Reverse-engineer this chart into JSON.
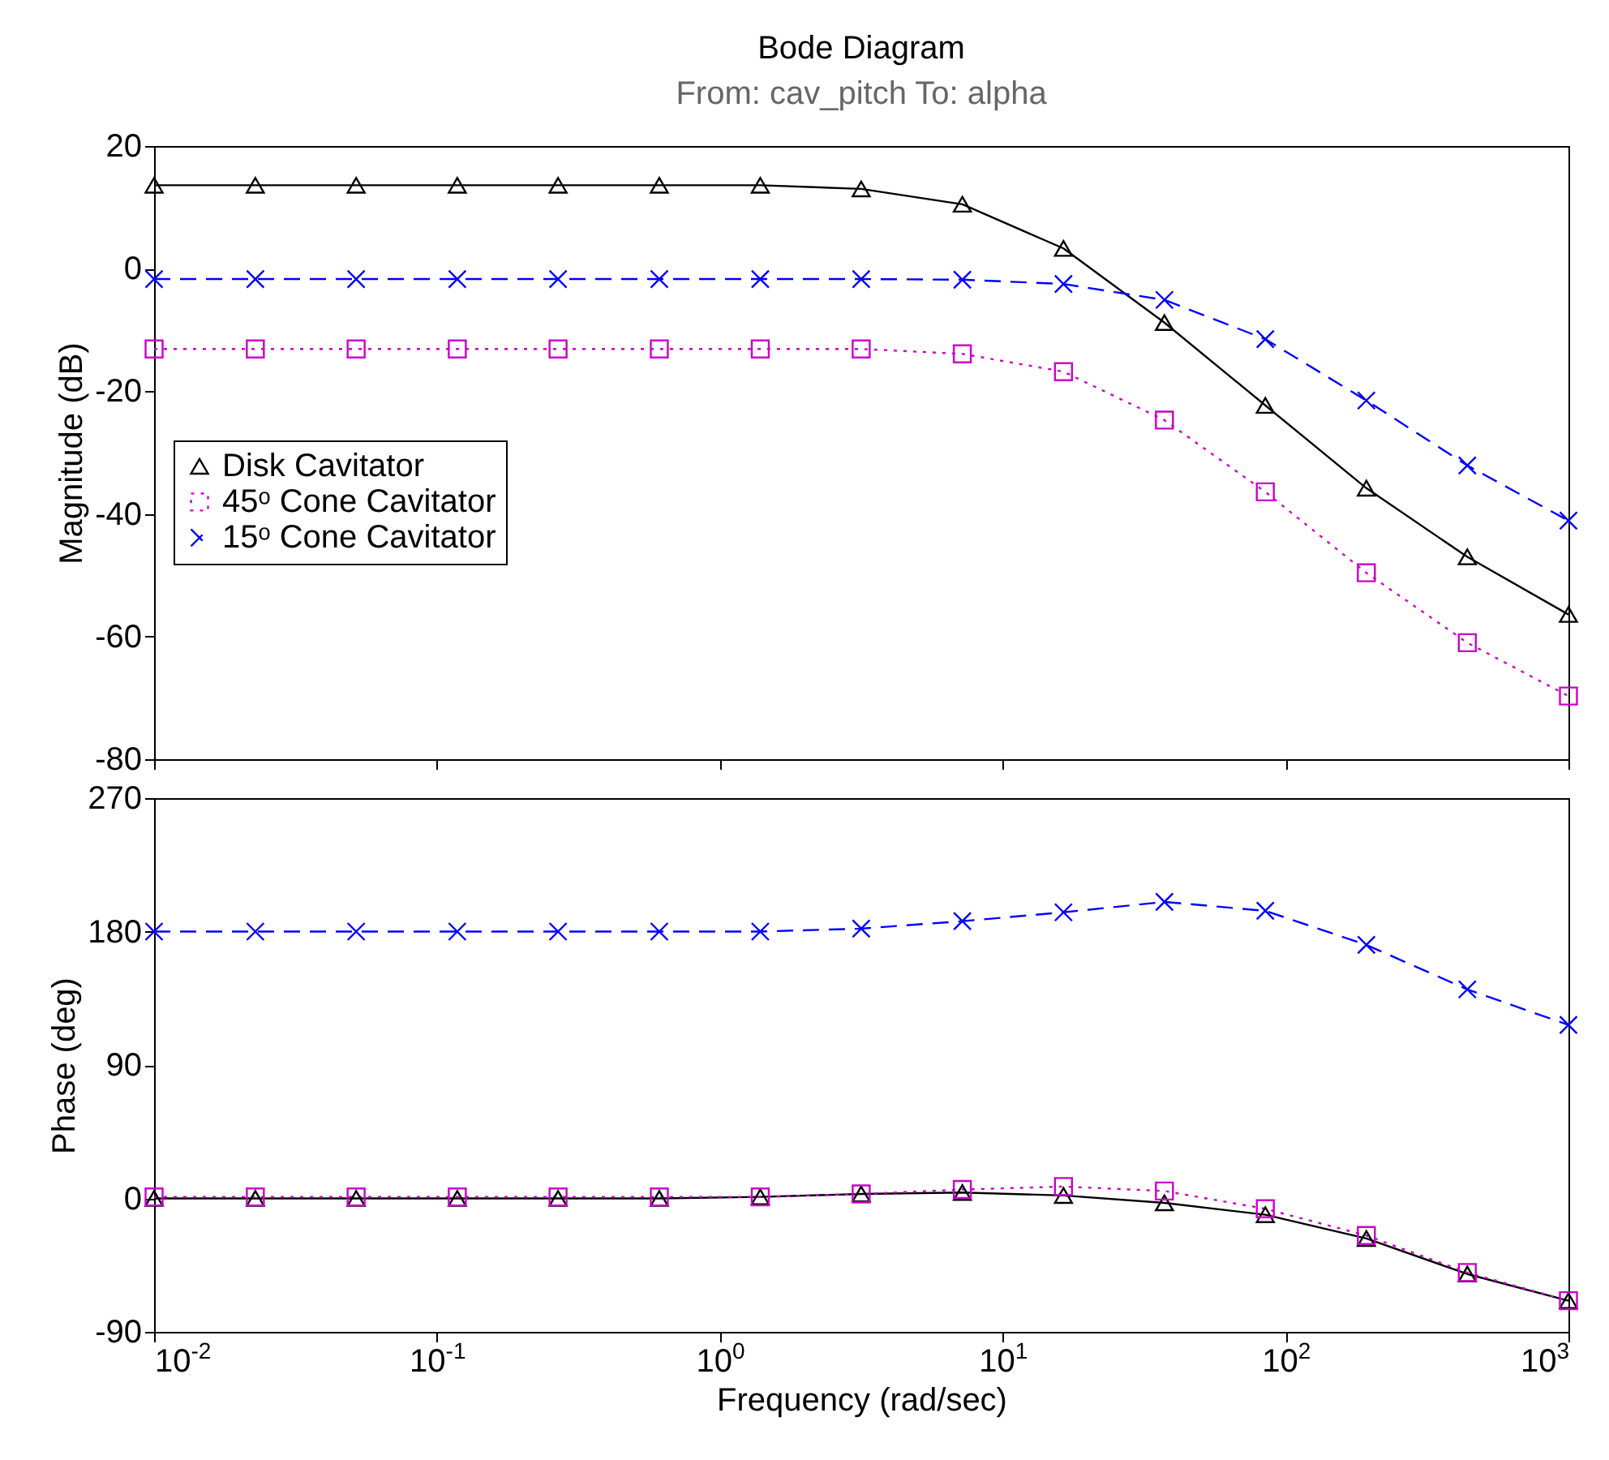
{
  "chart_data": [
    {
      "type": "line",
      "title": "Bode Diagram",
      "subtitle": "From: cav_pitch  To: alpha",
      "ylabel": "Magnitude (dB)",
      "log": "x",
      "legend": "left",
      "tick_labels": "y",
      "x": [
        0.01,
        0.0228,
        0.0518,
        0.118,
        0.268,
        0.611,
        1.39,
        3.16,
        7.2,
        16.4,
        37.3,
        84.8,
        193,
        439,
        1000
      ],
      "xlim": [
        0.01,
        1000
      ],
      "xticks": [
        {
          "value": 0.01,
          "label": null
        },
        {
          "value": 0.1,
          "label": null
        },
        {
          "value": 1,
          "label": null
        },
        {
          "value": 10,
          "label": null
        },
        {
          "value": 100,
          "label": null
        },
        {
          "value": 1000,
          "label": null
        }
      ],
      "ylim": [
        -80,
        20
      ],
      "yticks": [
        -80,
        -60,
        -40,
        -20,
        0,
        20
      ],
      "series": [
        {
          "name": "Disk Cavitator",
          "color": "#000000",
          "marker": "triangle",
          "line_style": "solid",
          "values": [
            13.6,
            13.6,
            13.6,
            13.6,
            13.6,
            13.6,
            13.6,
            13.0,
            10.5,
            3.3,
            -8.8,
            -22.3,
            -35.8,
            -47,
            -56.4
          ]
        },
        {
          "name": "45ᵒ Cone Cavitator",
          "color": "#cc00cc",
          "marker": "square",
          "line_style": "dotted",
          "values": [
            -13.1,
            -13.1,
            -13.1,
            -13.1,
            -13.1,
            -13.1,
            -13.1,
            -13.1,
            -13.9,
            -16.8,
            -24.7,
            -36.4,
            -49.6,
            -61,
            -69.7
          ]
        },
        {
          "name": "15ᵒ Cone Cavitator",
          "color": "#0000ff",
          "marker": "cross",
          "line_style": "dashed",
          "values": [
            -1.7,
            -1.7,
            -1.7,
            -1.7,
            -1.7,
            -1.7,
            -1.7,
            -1.7,
            -1.8,
            -2.5,
            -5.1,
            -11.5,
            -21.5,
            -32.1,
            -41.1
          ]
        }
      ]
    },
    {
      "type": "line",
      "xlabel": "Frequency  (rad/sec)",
      "ylabel": "Phase (deg)",
      "log": "x",
      "x": [
        0.01,
        0.0228,
        0.0518,
        0.118,
        0.268,
        0.611,
        1.39,
        3.16,
        7.2,
        16.4,
        37.3,
        84.8,
        193,
        439,
        1000
      ],
      "xlim": [
        0.01,
        1000
      ],
      "xticks": [
        {
          "value": 0.01,
          "label": "10$^{-2}$"
        },
        {
          "value": 0.1,
          "label": "10$^{-1}$"
        },
        {
          "value": 1,
          "label": "10$^{0}$"
        },
        {
          "value": 10,
          "label": "10$^{1}$"
        },
        {
          "value": 100,
          "label": "10$^{2}$"
        },
        {
          "value": 1000,
          "label": "10$^{3}$"
        }
      ],
      "ylim": [
        -90,
        270
      ],
      "yticks": [
        -90,
        0,
        90,
        180,
        270
      ],
      "series": [
        {
          "color": "#000000",
          "marker": "triangle",
          "line_style": "solid",
          "values": [
            0,
            0,
            0,
            0,
            0,
            0,
            1,
            3,
            4,
            2,
            -3,
            -11,
            -27,
            -51,
            -69
          ]
        },
        {
          "color": "#cc00cc",
          "marker": "square",
          "line_style": "dotted",
          "values": [
            1,
            1,
            1,
            1,
            1,
            1,
            1,
            3,
            6,
            8,
            5,
            -7,
            -25,
            -50,
            -69
          ]
        },
        {
          "color": "#0000ff",
          "marker": "cross",
          "line_style": "dashed",
          "values": [
            180,
            180,
            180,
            180,
            180,
            180,
            180,
            182,
            187,
            193,
            200,
            194,
            171,
            141,
            117
          ]
        }
      ]
    }
  ]
}
